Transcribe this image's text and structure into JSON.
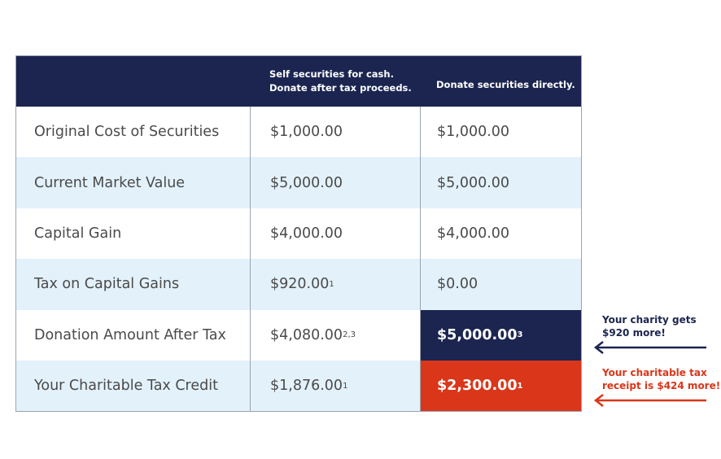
{
  "table": {
    "header": [
      [
        "Self securities for cash.",
        "Donate after tax proceeds."
      ],
      [
        "Donate securities directly."
      ]
    ],
    "rows": [
      {
        "label": "Original Cost of Securities",
        "cells": [
          {
            "text": "$1,000.00"
          },
          {
            "text": "$1,000.00"
          }
        ]
      },
      {
        "label": "Current Market Value",
        "cells": [
          {
            "text": "$5,000.00"
          },
          {
            "text": "$5,000.00"
          }
        ]
      },
      {
        "label": "Capital Gain",
        "cells": [
          {
            "text": "$4,000.00"
          },
          {
            "text": "$4,000.00"
          }
        ]
      },
      {
        "label": "Tax on Capital Gains",
        "cells": [
          {
            "text": "$920.00",
            "note": "1"
          },
          {
            "text": "$0.00"
          }
        ]
      },
      {
        "label": "Donation Amount After Tax",
        "cells": [
          {
            "text": "$4,080.00",
            "note": "2,3"
          },
          {
            "text": "$5,000.00",
            "note": "3"
          }
        ]
      },
      {
        "label": "Your Charitable Tax Credit",
        "cells": [
          {
            "text": "$1,876.00",
            "note": "1"
          },
          {
            "text": "$2,300.00",
            "note": "1"
          }
        ]
      }
    ]
  },
  "annotations": [
    {
      "lines": [
        "Your charity gets",
        "$920 more!"
      ],
      "color": "#1b2550"
    },
    {
      "lines": [
        "Your charitable tax",
        "receipt is $424 more!"
      ],
      "color": "#d9361a"
    }
  ]
}
